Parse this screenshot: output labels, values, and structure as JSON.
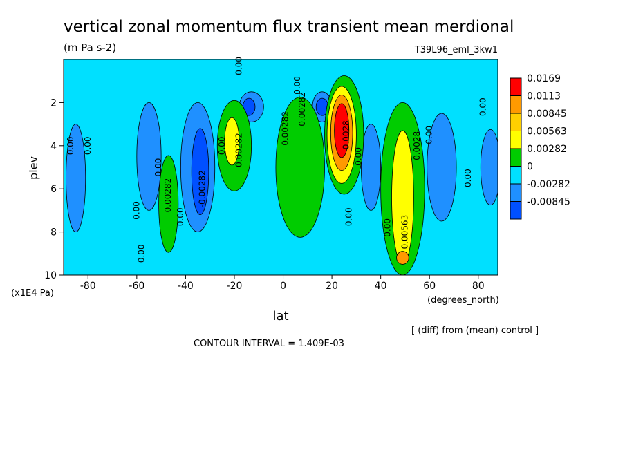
{
  "chart_data": {
    "type": "heatmap",
    "title": "vertical zonal momentum flux transient mean merdional",
    "units": "(m Pa s-2)",
    "run_label": "T39L96_eml_3kw1",
    "xlabel": "lat",
    "xunits": "(degrees_north)",
    "ylabel": "plev",
    "yunits": "(x1E4 Pa)",
    "xlim": [
      -90,
      88
    ],
    "ylim": [
      10,
      0
    ],
    "x_ticks": [
      {
        "value": -80,
        "label": "-80"
      },
      {
        "value": -60,
        "label": "-60"
      },
      {
        "value": -40,
        "label": "-40"
      },
      {
        "value": -20,
        "label": "-20"
      },
      {
        "value": 0,
        "label": "0"
      },
      {
        "value": 20,
        "label": "20"
      },
      {
        "value": 40,
        "label": "40"
      },
      {
        "value": 60,
        "label": "60"
      },
      {
        "value": 80,
        "label": "80"
      }
    ],
    "y_ticks": [
      {
        "value": 2,
        "label": "2"
      },
      {
        "value": 4,
        "label": "4"
      },
      {
        "value": 6,
        "label": "6"
      },
      {
        "value": 8,
        "label": "8"
      },
      {
        "value": 10,
        "label": "10"
      }
    ],
    "diff_note": "[ (diff) from (mean) control ]",
    "contour_interval_text": "CONTOUR INTERVAL = 1.409E-03",
    "colorbar": [
      {
        "label": "0.0169",
        "color": "#ff0000"
      },
      {
        "label": "0.0113",
        "color": "#ff9a00"
      },
      {
        "label": "0.00845",
        "color": "#ffd000"
      },
      {
        "label": "0.00563",
        "color": "#ffff00"
      },
      {
        "label": "0.00282",
        "color": "#00cc00"
      },
      {
        "label": "0",
        "color": "#00e0ff"
      },
      {
        "label": "-0.00282",
        "color": "#1f90ff"
      },
      {
        "label": "-0.00845",
        "color": "#0050ff"
      }
    ],
    "colors": {
      "neg_strong": "#0050ff",
      "neg_weak": "#1f90ff",
      "zero": "#00e0ff",
      "pos_weak": "#00cc00",
      "pos_mid": "#ffff00",
      "pos_orange": "#ff9a00",
      "pos_red": "#ff0000"
    },
    "features": [
      {
        "lat": 85,
        "plev": 5.0,
        "w": 4,
        "h": 3.5,
        "level": "neg_weak"
      },
      {
        "lat": 65,
        "plev": 5.0,
        "w": 6,
        "h": 5,
        "level": "neg_weak"
      },
      {
        "lat": -85,
        "plev": 5.5,
        "w": 4,
        "h": 5,
        "level": "neg_weak"
      },
      {
        "lat": -55,
        "plev": 4.5,
        "w": 5,
        "h": 5,
        "level": "neg_weak"
      },
      {
        "lat": -35,
        "plev": 5.0,
        "w": 7,
        "h": 6,
        "level": "neg_weak"
      },
      {
        "lat": -34,
        "plev": 5.2,
        "w": 3.5,
        "h": 4,
        "level": "neg_strong"
      },
      {
        "lat": -13,
        "plev": 2.2,
        "w": 5,
        "h": 1.4,
        "level": "neg_weak"
      },
      {
        "lat": -14,
        "plev": 2.2,
        "w": 2.5,
        "h": 0.8,
        "level": "neg_strong"
      },
      {
        "lat": 16,
        "plev": 2.2,
        "w": 4,
        "h": 1.4,
        "level": "neg_weak"
      },
      {
        "lat": 16,
        "plev": 2.2,
        "w": 2.5,
        "h": 0.8,
        "level": "neg_strong"
      },
      {
        "lat": 36,
        "plev": 5.0,
        "w": 4,
        "h": 4,
        "level": "neg_weak"
      },
      {
        "lat": -47,
        "plev": 6.7,
        "w": 4,
        "h": 4.5,
        "level": "pos_weak"
      },
      {
        "lat": -20,
        "plev": 4.0,
        "w": 7,
        "h": 4.2,
        "level": "pos_weak"
      },
      {
        "lat": -21,
        "plev": 3.8,
        "w": 3,
        "h": 2.2,
        "level": "pos_mid"
      },
      {
        "lat": 7,
        "plev": 5.0,
        "w": 10,
        "h": 6.5,
        "level": "pos_weak"
      },
      {
        "lat": 25,
        "plev": 3.5,
        "w": 8,
        "h": 5.5,
        "level": "pos_weak"
      },
      {
        "lat": 24,
        "plev": 3.5,
        "w": 6,
        "h": 4.5,
        "level": "pos_mid"
      },
      {
        "lat": 24,
        "plev": 3.4,
        "w": 4.5,
        "h": 3.5,
        "level": "pos_orange"
      },
      {
        "lat": 24,
        "plev": 3.3,
        "w": 3,
        "h": 2.5,
        "level": "pos_red"
      },
      {
        "lat": 49,
        "plev": 6.0,
        "w": 9,
        "h": 8,
        "level": "pos_weak"
      },
      {
        "lat": 49,
        "plev": 6.4,
        "w": 4.5,
        "h": 6.2,
        "level": "pos_mid"
      },
      {
        "lat": 49,
        "plev": 9.2,
        "w": 2.5,
        "h": 0.6,
        "level": "pos_orange"
      }
    ],
    "contour_labels": [
      {
        "lat": -87,
        "plev": 4.0,
        "text": "0.00"
      },
      {
        "lat": -80,
        "plev": 4.0,
        "text": "0.00"
      },
      {
        "lat": -60,
        "plev": 7.0,
        "text": "0.00"
      },
      {
        "lat": -58,
        "plev": 9.0,
        "text": "0.00"
      },
      {
        "lat": -51,
        "plev": 5.0,
        "text": "0.00"
      },
      {
        "lat": -47,
        "plev": 6.3,
        "text": "0.00282"
      },
      {
        "lat": -42,
        "plev": 7.3,
        "text": "0.00"
      },
      {
        "lat": -33,
        "plev": 6.0,
        "text": "-0.00282"
      },
      {
        "lat": -25,
        "plev": 4.0,
        "text": "0.00"
      },
      {
        "lat": -18,
        "plev": 4.2,
        "text": "0.00282"
      },
      {
        "lat": -18,
        "plev": 0.3,
        "text": "0.00"
      },
      {
        "lat": 6,
        "plev": 1.2,
        "text": "0.00"
      },
      {
        "lat": 8,
        "plev": 2.3,
        "text": "0.00282"
      },
      {
        "lat": 1,
        "plev": 3.2,
        "text": "0.00282"
      },
      {
        "lat": 26,
        "plev": 3.5,
        "text": "0.0028"
      },
      {
        "lat": 31,
        "plev": 4.5,
        "text": "0.00"
      },
      {
        "lat": 27,
        "plev": 7.3,
        "text": "0.00"
      },
      {
        "lat": 43,
        "plev": 7.8,
        "text": "0.00"
      },
      {
        "lat": 50,
        "plev": 8.0,
        "text": "0.00563"
      },
      {
        "lat": 55,
        "plev": 4.0,
        "text": "0.0028"
      },
      {
        "lat": 60,
        "plev": 3.5,
        "text": "0.00"
      },
      {
        "lat": 76,
        "plev": 5.5,
        "text": "0.00"
      },
      {
        "lat": 82,
        "plev": 2.2,
        "text": "0.00"
      }
    ]
  }
}
